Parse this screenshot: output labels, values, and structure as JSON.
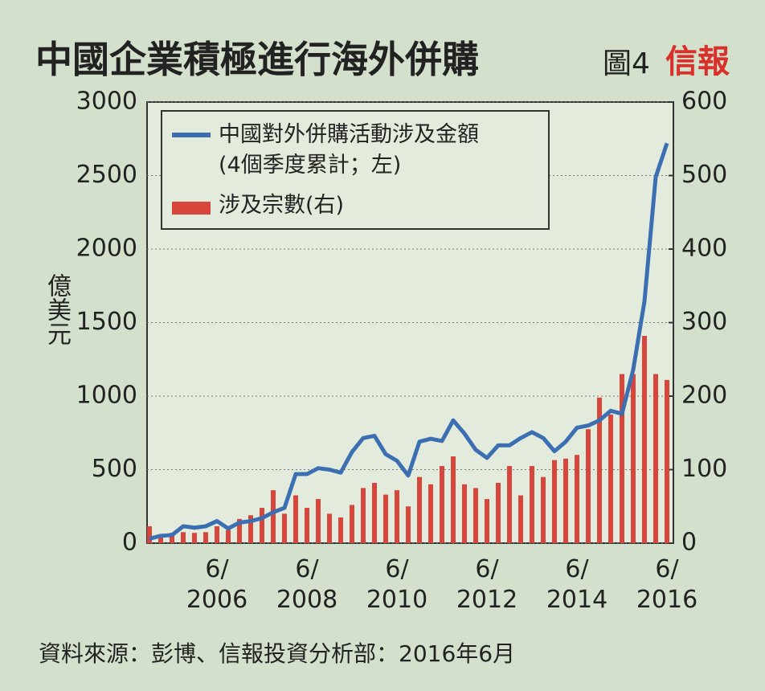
{
  "chart_data": {
    "type": "bar_line",
    "title": "中國企業積極進行海外併購",
    "figure_label": "圖4",
    "brand": "信報",
    "y_label": "億美元",
    "source": "資料來源：彭博、信報投資分析部：2016年6月",
    "categories": [
      null,
      null,
      null,
      null,
      null,
      null,
      "6/\n2006",
      null,
      null,
      null,
      null,
      null,
      null,
      null,
      "6/\n2008",
      null,
      null,
      null,
      null,
      null,
      null,
      null,
      "6/\n2010",
      null,
      null,
      null,
      null,
      null,
      null,
      null,
      "6/\n2012",
      null,
      null,
      null,
      null,
      null,
      null,
      null,
      "6/\n2014",
      null,
      null,
      null,
      null,
      null,
      null,
      null,
      "6/\n2016"
    ],
    "series": [
      {
        "name": "中國對外併購活動涉及金額\n(4個季度累計；左)",
        "type": "line",
        "color": "#3b6fb2",
        "axis": "y",
        "values": [
          30,
          50,
          55,
          115,
          105,
          115,
          150,
          100,
          140,
          150,
          170,
          210,
          240,
          470,
          470,
          510,
          500,
          480,
          620,
          715,
          730,
          605,
          560,
          460,
          690,
          710,
          695,
          835,
          745,
          635,
          580,
          665,
          665,
          715,
          755,
          715,
          625,
          690,
          785,
          800,
          835,
          900,
          880,
          1180,
          1645,
          2490,
          2720
        ]
      },
      {
        "name": "涉及宗數(右)",
        "type": "bar",
        "color": "#d8453a",
        "axis": "y2",
        "values": [
          23,
          8,
          14,
          15,
          14,
          15,
          23,
          18,
          33,
          38,
          48,
          72,
          40,
          65,
          48,
          60,
          40,
          35,
          52,
          75,
          82,
          66,
          72,
          50,
          90,
          80,
          105,
          118,
          80,
          75,
          60,
          82,
          105,
          65,
          105,
          90,
          113,
          115,
          120,
          155,
          198,
          175,
          230,
          230,
          282,
          230,
          222
        ]
      }
    ],
    "ylim": [
      0,
      3000
    ],
    "yticks": [
      0,
      500,
      1000,
      1500,
      2000,
      2500,
      3000
    ],
    "y2lim": [
      0,
      600
    ],
    "y2ticks": [
      0,
      100,
      200,
      300,
      400,
      500,
      600
    ],
    "grid": true
  }
}
